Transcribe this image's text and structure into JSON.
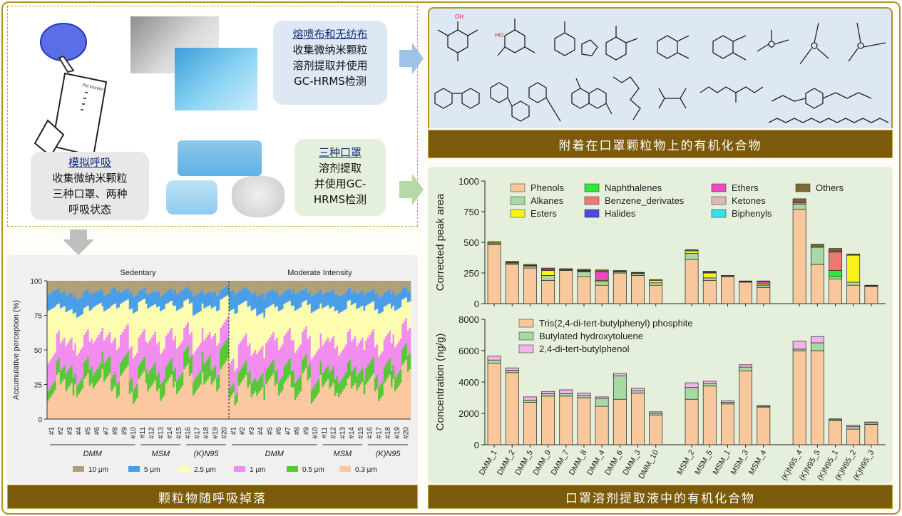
{
  "left_top": {
    "bubble_meltblown": {
      "title": "熔喷布和无纺布",
      "lines": [
        "收集微纳米颗粒",
        "溶剂提取并使用",
        "GC-HRMS检测"
      ]
    },
    "bubble_breath": {
      "title": "模拟呼吸",
      "lines": [
        "收集微纳米颗粒",
        "三种口罩、两种",
        "呼吸状态"
      ]
    },
    "bubble_masks": {
      "title": "三种口罩",
      "lines": [
        "溶剂提取",
        "并使用GC-",
        "HRMS检测"
      ]
    },
    "device_label": "PM Monitor"
  },
  "titles": {
    "top_right": "附着在口罩颗粒物上的有机化合物",
    "bottom_left": "颗粒物随呼吸掉落",
    "bottom_right": "口罩溶剂提取液中的有机化合物"
  },
  "colors": {
    "frame": "#b59224",
    "title_bar": "#7b5b0b",
    "panel_blue": "#dde8f4",
    "panel_green": "#e4f0dc",
    "arrow_blue": "#9ec3e8",
    "arrow_green": "#b7d9a8",
    "arrow_gray": "#bfbfbf"
  },
  "chart_data": [
    {
      "type": "bar",
      "stacked": true,
      "panel": "accumulative",
      "ylabel": "Accumulative perception (%)",
      "ylim": [
        0,
        100
      ],
      "yticks": [
        0,
        25,
        50,
        75,
        100
      ],
      "group_titles": [
        "Sedentary",
        "Moderate Intensity"
      ],
      "categories": [
        "#1",
        "#2",
        "#3",
        "#4",
        "#5",
        "#6",
        "#7",
        "#8",
        "#9",
        "#10",
        "#11",
        "#12",
        "#13",
        "#14",
        "#15",
        "#16",
        "#17",
        "#18",
        "#19",
        "#20"
      ],
      "mask_groups": [
        {
          "name": "DMM",
          "from": 0,
          "to": 9
        },
        {
          "name": "MSM",
          "from": 10,
          "to": 14
        },
        {
          "name": "(K)N95",
          "from": 15,
          "to": 19
        }
      ],
      "legend": [
        "10 μm",
        "5 μm",
        "2.5 μm",
        "1 μm",
        "0.5 μm",
        "0.3 μm"
      ],
      "legend_placement": "bottom",
      "colors": [
        "#b0a07a",
        "#4a9ee8",
        "#fdfdb0",
        "#f28df0",
        "#58c838",
        "#fbc8a0"
      ],
      "series_boundaries_note": "cumulative upper bounds (%) of 0.3, 0.5, 1, 2.5, 5 μm classes; 10 μm fills to 100",
      "sedentary": [
        [
          18,
          25,
          45,
          80,
          92
        ],
        [
          30,
          40,
          60,
          82,
          93
        ],
        [
          22,
          35,
          55,
          78,
          90
        ],
        [
          20,
          28,
          50,
          75,
          88
        ],
        [
          28,
          40,
          60,
          80,
          92
        ],
        [
          25,
          35,
          58,
          82,
          92
        ],
        [
          32,
          45,
          62,
          80,
          91
        ],
        [
          20,
          30,
          55,
          82,
          94
        ],
        [
          35,
          45,
          65,
          85,
          93
        ],
        [
          15,
          25,
          48,
          78,
          90
        ],
        [
          30,
          40,
          60,
          85,
          93
        ],
        [
          25,
          38,
          60,
          82,
          92
        ],
        [
          18,
          30,
          52,
          80,
          91
        ],
        [
          28,
          40,
          62,
          84,
          93
        ],
        [
          22,
          32,
          55,
          80,
          92
        ],
        [
          35,
          48,
          65,
          85,
          94
        ],
        [
          20,
          30,
          50,
          76,
          90
        ],
        [
          30,
          45,
          62,
          82,
          92
        ],
        [
          25,
          35,
          58,
          80,
          91
        ],
        [
          40,
          55,
          70,
          88,
          95
        ]
      ],
      "moderate": [
        [
          15,
          22,
          40,
          78,
          92
        ],
        [
          28,
          38,
          58,
          84,
          94
        ],
        [
          20,
          30,
          50,
          80,
          92
        ],
        [
          18,
          28,
          48,
          75,
          89
        ],
        [
          30,
          40,
          60,
          82,
          93
        ],
        [
          22,
          32,
          55,
          80,
          91
        ],
        [
          28,
          40,
          62,
          84,
          93
        ],
        [
          18,
          30,
          52,
          80,
          92
        ],
        [
          32,
          42,
          62,
          84,
          93
        ],
        [
          14,
          24,
          46,
          78,
          90
        ],
        [
          28,
          38,
          58,
          82,
          92
        ],
        [
          22,
          34,
          56,
          80,
          92
        ],
        [
          20,
          30,
          50,
          78,
          90
        ],
        [
          26,
          38,
          60,
          84,
          93
        ],
        [
          22,
          32,
          54,
          80,
          91
        ],
        [
          30,
          42,
          62,
          84,
          93
        ],
        [
          18,
          28,
          50,
          78,
          90
        ],
        [
          28,
          40,
          60,
          82,
          92
        ],
        [
          24,
          34,
          56,
          80,
          91
        ],
        [
          38,
          50,
          68,
          86,
          94
        ]
      ]
    },
    {
      "type": "bar",
      "stacked": true,
      "panel": "corrected_peak_area",
      "ylabel": "Corrected peak area",
      "ylim": [
        0,
        1000
      ],
      "yticks": [
        0,
        250,
        500,
        750,
        1000
      ],
      "legend_placement": "top",
      "series_names": [
        "Phenols",
        "Alkanes",
        "Esters",
        "Naphthalenes",
        "Benzene_derivates",
        "Halides",
        "Ethers",
        "Ketones",
        "Biphenyls",
        "Others"
      ],
      "series_colors": [
        "#f9c79c",
        "#a8d8a4",
        "#f7f21c",
        "#2fe838",
        "#f07873",
        "#4a4ae0",
        "#ec4ac0",
        "#dfb8b8",
        "#36e0e8",
        "#7a6a32"
      ],
      "samples": [
        "DMM_1",
        "DMM_2",
        "DMM_5",
        "DMM_9",
        "DMM_7",
        "DMM_8",
        "DMM_4",
        "DMM_6",
        "DMM_3",
        "DMM_10",
        "MSM_2",
        "MSM_5",
        "MSM_1",
        "MSM_3",
        "MSM_4",
        "(K)N95_4",
        "(K)N95_5",
        "(K)N95_1",
        "(K)N95_2",
        "(K)N95_3"
      ],
      "values": [
        [
          480,
          10,
          10,
          0,
          0,
          0,
          0,
          0,
          0,
          5
        ],
        [
          320,
          10,
          5,
          0,
          0,
          0,
          0,
          0,
          0,
          10
        ],
        [
          290,
          15,
          5,
          0,
          0,
          0,
          0,
          0,
          0,
          10
        ],
        [
          190,
          40,
          40,
          0,
          0,
          0,
          10,
          0,
          0,
          10
        ],
        [
          270,
          5,
          0,
          0,
          0,
          0,
          0,
          0,
          0,
          10
        ],
        [
          220,
          40,
          5,
          5,
          0,
          0,
          0,
          0,
          0,
          10
        ],
        [
          150,
          30,
          10,
          0,
          0,
          0,
          70,
          0,
          0,
          15
        ],
        [
          250,
          10,
          5,
          0,
          0,
          0,
          0,
          0,
          0,
          5
        ],
        [
          230,
          15,
          5,
          0,
          0,
          0,
          0,
          0,
          0,
          5
        ],
        [
          150,
          20,
          20,
          0,
          0,
          0,
          0,
          0,
          0,
          5
        ],
        [
          360,
          50,
          20,
          0,
          0,
          0,
          0,
          0,
          0,
          10
        ],
        [
          190,
          20,
          40,
          0,
          0,
          0,
          5,
          0,
          0,
          10
        ],
        [
          220,
          5,
          0,
          0,
          0,
          0,
          0,
          0,
          0,
          5
        ],
        [
          175,
          5,
          0,
          0,
          0,
          0,
          0,
          0,
          0,
          5
        ],
        [
          130,
          20,
          10,
          0,
          0,
          0,
          20,
          0,
          0,
          5
        ],
        [
          770,
          40,
          10,
          0,
          0,
          0,
          10,
          0,
          0,
          25
        ],
        [
          320,
          140,
          0,
          0,
          0,
          0,
          0,
          0,
          0,
          25
        ],
        [
          200,
          20,
          0,
          50,
          150,
          0,
          10,
          0,
          0,
          20
        ],
        [
          150,
          25,
          220,
          0,
          0,
          0,
          0,
          0,
          0,
          10
        ],
        [
          140,
          5,
          0,
          0,
          0,
          0,
          0,
          0,
          0,
          5
        ]
      ]
    },
    {
      "type": "bar",
      "stacked": true,
      "panel": "concentration",
      "ylabel": "Concentration (ng/g)",
      "ylim": [
        0,
        8000
      ],
      "yticks": [
        0,
        2000,
        4000,
        6000,
        8000
      ],
      "legend_placement": "top",
      "series_names": [
        "Tris(2,4-di-tert-butylphenyl) phosphite",
        "Butylated hydroxytoluene",
        "2,4-di-tert-butylphenol"
      ],
      "series_colors": [
        "#f9c79c",
        "#a8d8a4",
        "#f2b4ea"
      ],
      "samples": [
        "DMM_1",
        "DMM_2",
        "DMM_5",
        "DMM_9",
        "DMM_7",
        "DMM_8",
        "DMM_4",
        "DMM_6",
        "DMM_3",
        "DMM_10",
        "MSM_2",
        "MSM_5",
        "MSM_1",
        "MSM_3",
        "MSM_4",
        "(K)N95_4",
        "(K)N95_5",
        "(K)N95_1",
        "(K)N95_2",
        "(K)N95_3"
      ],
      "values": [
        [
          5200,
          200,
          250
        ],
        [
          4600,
          150,
          150
        ],
        [
          2700,
          150,
          200
        ],
        [
          3100,
          150,
          150
        ],
        [
          3100,
          150,
          250
        ],
        [
          3000,
          150,
          150
        ],
        [
          2450,
          500,
          100
        ],
        [
          2900,
          1500,
          150
        ],
        [
          3300,
          150,
          150
        ],
        [
          1900,
          100,
          100
        ],
        [
          2900,
          750,
          300
        ],
        [
          3750,
          150,
          150
        ],
        [
          2600,
          100,
          100
        ],
        [
          4700,
          250,
          150
        ],
        [
          2400,
          50,
          50
        ],
        [
          6000,
          100,
          500
        ],
        [
          6000,
          500,
          400
        ],
        [
          1550,
          50,
          50
        ],
        [
          1000,
          150,
          100
        ],
        [
          1300,
          100,
          50
        ]
      ]
    }
  ]
}
